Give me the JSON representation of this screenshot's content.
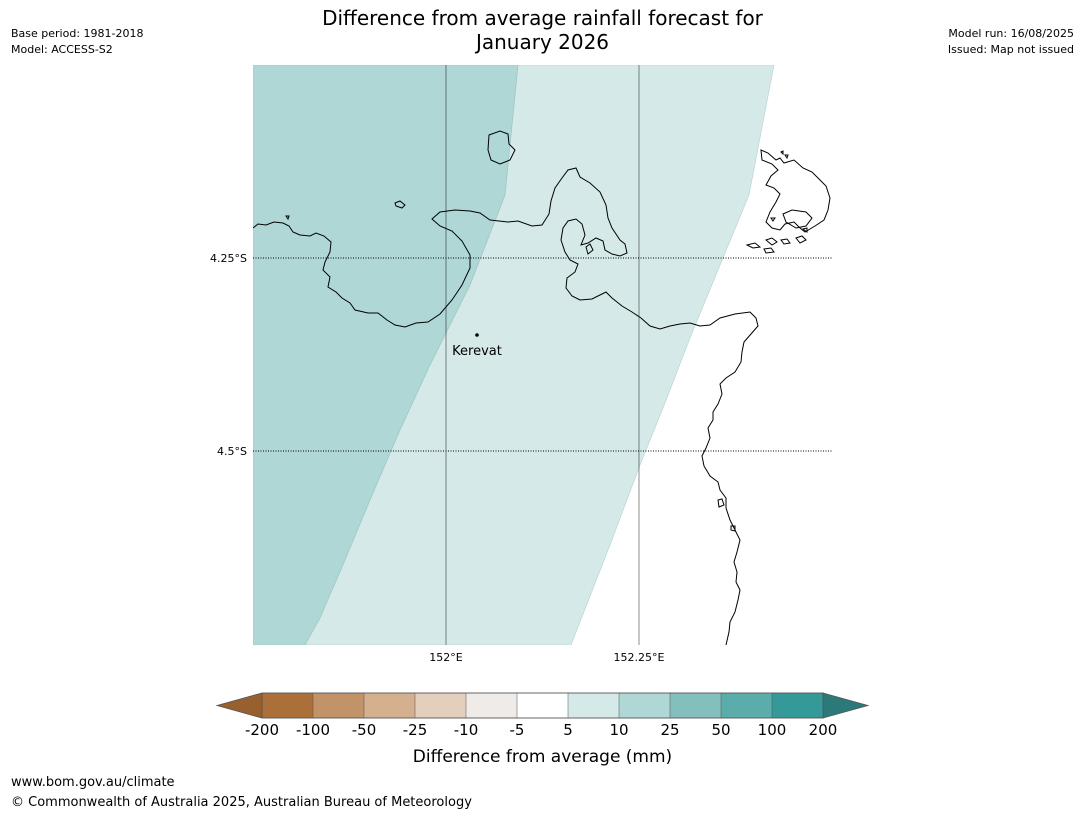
{
  "header": {
    "title_line1": "Difference from average rainfall forecast for",
    "title_line2": "January 2026",
    "base_period": "Base period: 1981-2018",
    "model": "Model: ACCESS-S2",
    "model_run": "Model run: 16/08/2025",
    "issued": "Issued: Map not issued"
  },
  "map": {
    "lat_labels": [
      "4.25°S",
      "4.5°S"
    ],
    "lon_labels": [
      "152°E",
      "152.25°E"
    ],
    "place_label": "Kerevat",
    "zone_colors": {
      "10-25": "#aed7d6",
      "5-10": "#d5e9e8",
      "-5-5": "#ffffff"
    }
  },
  "colorbar": {
    "title": "Difference from average (mm)",
    "ticks": [
      "-200",
      "-100",
      "-50",
      "-25",
      "-10",
      "-5",
      "5",
      "10",
      "25",
      "50",
      "100",
      "200"
    ],
    "colors": [
      "#ab7039",
      "#c29268",
      "#d4b08f",
      "#e3cfbc",
      "#efebe8",
      "#ffffff",
      "#d5e9e8",
      "#aed7d6",
      "#83c0bd",
      "#5badac",
      "#349a99"
    ],
    "under_color": "#985f2f",
    "over_color": "#2b7a79"
  },
  "footer": {
    "url": "www.bom.gov.au/climate",
    "copyright": "© Commonwealth of Australia 2025, Australian Bureau of Meteorology"
  }
}
